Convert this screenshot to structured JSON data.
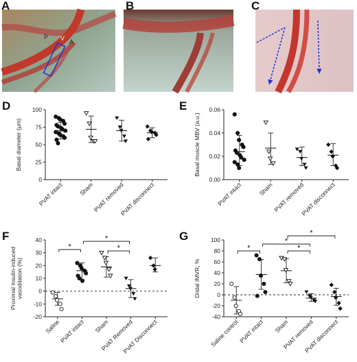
{
  "photos": [
    {
      "panel": "A",
      "labels": [
        "P",
        "V",
        "A"
      ]
    },
    {
      "panel": "B",
      "labels": []
    },
    {
      "panel": "C",
      "labels": []
    }
  ],
  "chart_data": [
    {
      "panel": "D",
      "type": "scatter",
      "ylabel": "Basal diameter (μm)",
      "ylim": [
        0,
        100
      ],
      "yticks": [
        0,
        25,
        50,
        75,
        100
      ],
      "categories": [
        "PVAT intact",
        "Sham",
        "PVAT removed",
        "PVAT disconnect"
      ],
      "markers": [
        "filled-circle",
        "open-triangle",
        "filled-triangle",
        "filled-diamond"
      ],
      "mean": [
        70,
        72,
        70,
        67
      ],
      "sd": [
        [
          58,
          82
        ],
        [
          53,
          91
        ],
        [
          55,
          85
        ],
        [
          60,
          74
        ]
      ],
      "points": [
        [
          90,
          88,
          86,
          84,
          80,
          78,
          76,
          74,
          72,
          70,
          68,
          66,
          64,
          62,
          60,
          57,
          52
        ],
        [
          95,
          80,
          60,
          55,
          55
        ],
        [
          88,
          75,
          70,
          62,
          55
        ],
        [
          76,
          70,
          68,
          67,
          64,
          58
        ]
      ]
    },
    {
      "panel": "E",
      "type": "scatter",
      "ylabel": "Basal muscle MBV (a.u.)",
      "ylim": [
        0,
        0.06
      ],
      "yticks": [
        0.0,
        0.02,
        0.04,
        0.06
      ],
      "categories": [
        "PVAT intact",
        "Sham",
        "PVAT removed",
        "PVAT disconnect"
      ],
      "markers": [
        "filled-circle",
        "open-triangle",
        "filled-triangle",
        "filled-diamond"
      ],
      "mean": [
        0.024,
        0.027,
        0.019,
        0.021
      ],
      "sd": [
        [
          0.012,
          0.038
        ],
        [
          0.013,
          0.04
        ],
        [
          0.012,
          0.028
        ],
        [
          0.012,
          0.031
        ]
      ],
      "points": [
        [
          0.056,
          0.04,
          0.034,
          0.03,
          0.028,
          0.025,
          0.023,
          0.021,
          0.019,
          0.017,
          0.015,
          0.013,
          0.01
        ],
        [
          0.049,
          0.024,
          0.018,
          0.014
        ],
        [
          0.026,
          0.024,
          0.018,
          0.013,
          0.01
        ],
        [
          0.03,
          0.024,
          0.02,
          0.012,
          0.01
        ]
      ]
    },
    {
      "panel": "F",
      "type": "scatter",
      "ylabel": "Proximal insulin-induced vasodilation (%)",
      "ylim": [
        -20,
        40
      ],
      "yticks": [
        -20,
        -10,
        0,
        10,
        20,
        30,
        40
      ],
      "categories": [
        "Saline",
        "PVAT intact",
        "Sham",
        "PVAT Removed",
        "PVAT Disconnect"
      ],
      "markers": [
        "open-circle",
        "filled-circle",
        "open-triangle",
        "filled-triangle",
        "filled-diamond"
      ],
      "mean": [
        -6,
        16,
        19,
        2,
        20
      ],
      "sd": [
        [
          -11,
          -1
        ],
        [
          9,
          22
        ],
        [
          11,
          27
        ],
        [
          -5,
          9
        ],
        [
          15,
          26
        ]
      ],
      "points": [
        [
          -1,
          -4,
          -7,
          -10,
          -14
        ],
        [
          22,
          20,
          18,
          16,
          14,
          12,
          10,
          8
        ],
        [
          30,
          26,
          22,
          17,
          12
        ],
        [
          10,
          4,
          2,
          -2,
          -6
        ],
        [
          26,
          20,
          17
        ]
      ],
      "significance": [
        {
          "from": 0,
          "to": 1,
          "label": "*"
        },
        {
          "from": 1,
          "to": 3,
          "label": "*"
        },
        {
          "from": 2,
          "to": 3,
          "label": "*"
        }
      ],
      "reference_line": 0
    },
    {
      "panel": "G",
      "type": "scatter",
      "ylabel": "Distal IMVR, %",
      "ylim": [
        -40,
        100
      ],
      "yticks": [
        -40,
        -20,
        0,
        20,
        40,
        60,
        80,
        100
      ],
      "categories": [
        "Saline control",
        "PVAT intact",
        "Sham",
        "PVAT removed",
        "PVAT disconnect"
      ],
      "markers": [
        "open-circle",
        "filled-circle",
        "open-triangle",
        "filled-triangle",
        "filled-diamond"
      ],
      "mean": [
        -10,
        37,
        44,
        -6,
        -3
      ],
      "sd": [
        [
          -35,
          15
        ],
        [
          10,
          64
        ],
        [
          22,
          66
        ],
        [
          -12,
          2
        ],
        [
          -19,
          12
        ]
      ],
      "points": [
        [
          20,
          -5,
          -20,
          -30,
          -35
        ],
        [
          72,
          65,
          35,
          20,
          5,
          -2
        ],
        [
          67,
          65,
          45,
          25,
          20
        ],
        [
          5,
          -2,
          -5,
          -10,
          -12
        ],
        [
          18,
          5,
          -5,
          -15,
          -25
        ]
      ],
      "significance": [
        {
          "from": 0,
          "to": 1,
          "label": "*"
        },
        {
          "from": 1,
          "to": 3,
          "label": "*"
        },
        {
          "from": 2,
          "to": 3,
          "label": "*"
        },
        {
          "from": 2,
          "to": 4,
          "label": "*"
        }
      ],
      "reference_line": 0
    }
  ]
}
